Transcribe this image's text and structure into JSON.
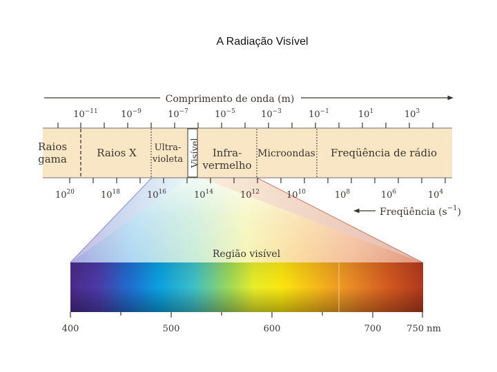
{
  "title": "A Radiação Visível",
  "wavelength_axis": {
    "label": "Comprimento de onda (m)",
    "ticks": [
      {
        "base": "10",
        "exp": "−11"
      },
      {
        "base": "10",
        "exp": "−9"
      },
      {
        "base": "10",
        "exp": "−7"
      },
      {
        "base": "10",
        "exp": "−5"
      },
      {
        "base": "10",
        "exp": "−3"
      },
      {
        "base": "10",
        "exp": "−1"
      },
      {
        "base": "10",
        "exp": "1"
      },
      {
        "base": "10",
        "exp": "3"
      }
    ]
  },
  "frequency_axis": {
    "label": "Freqüência (s",
    "label_exp": "−1",
    "label_close": ")",
    "ticks": [
      {
        "base": "10",
        "exp": "20"
      },
      {
        "base": "10",
        "exp": "18"
      },
      {
        "base": "10",
        "exp": "16"
      },
      {
        "base": "10",
        "exp": "14"
      },
      {
        "base": "10",
        "exp": "12"
      },
      {
        "base": "10",
        "exp": "10"
      },
      {
        "base": "10",
        "exp": "8"
      },
      {
        "base": "10",
        "exp": "6"
      },
      {
        "base": "10",
        "exp": "4"
      }
    ]
  },
  "regions": {
    "gamma_line1": "Raios",
    "gamma_line2": "gama",
    "xray": "Raios X",
    "uv_line1": "Ultra-",
    "uv_line2": "violeta",
    "visible": "Visível",
    "ir_line1": "Infra-",
    "ir_line2": "vermelho",
    "microwave": "Microondas",
    "radio": "Freqüência de rádio"
  },
  "visible_region": {
    "label": "Região visível",
    "ticks": [
      "400",
      "500",
      "600",
      "700",
      "750 nm"
    ]
  },
  "colors": {
    "band": "#f9e6c4",
    "visible_strip": "#ffffff",
    "text": "#3a3530"
  }
}
